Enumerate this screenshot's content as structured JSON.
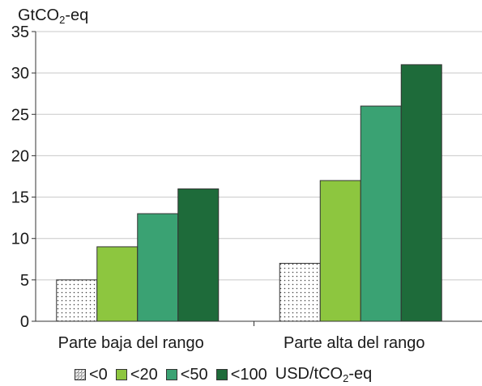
{
  "chart_data": {
    "type": "bar",
    "ylabel_base": "GtCO",
    "ylabel_sub": "2",
    "ylabel_tail": "-eq",
    "ylim": [
      0,
      35
    ],
    "yticks": [
      0,
      5,
      10,
      15,
      20,
      25,
      30,
      35
    ],
    "categories": [
      "Parte baja del rango",
      "Parte alta del rango"
    ],
    "series": [
      {
        "name": "<0",
        "values": [
          5,
          7
        ],
        "color": "#ffffff",
        "pattern": "dots"
      },
      {
        "name": "<20",
        "values": [
          9,
          17
        ],
        "color": "#8dc63f"
      },
      {
        "name": "<50",
        "values": [
          13,
          26
        ],
        "color": "#3aa273"
      },
      {
        "name": "<100",
        "values": [
          16,
          31
        ],
        "color": "#1e6b3a"
      }
    ],
    "legend_unit_base": "USD/tCO",
    "legend_unit_sub": "2",
    "legend_unit_tail": "-eq",
    "grid": "horizontal",
    "legend_position": "bottom"
  }
}
